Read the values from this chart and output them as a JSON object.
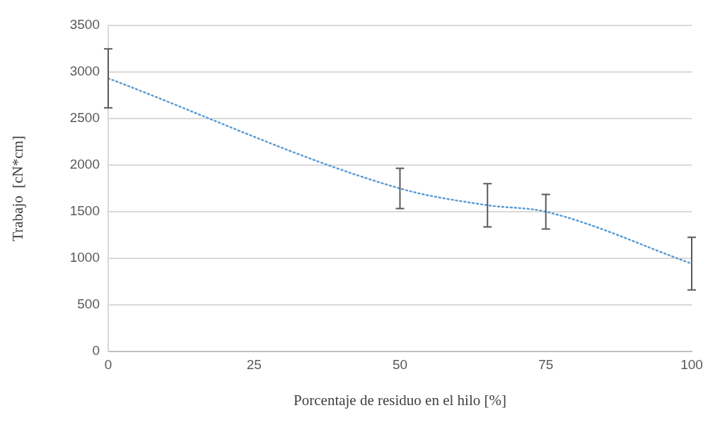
{
  "chart_data": {
    "type": "line",
    "xlabel": "Porcentaje de residuo en el hilo [%]",
    "ylabel": "Trabajo  [cN*cm]",
    "x": [
      0,
      50,
      65,
      75,
      100
    ],
    "series": [
      {
        "color": "#5b9bd5",
        "values": [
          2932,
          1750,
          1570,
          1500,
          943
        ],
        "errors": [
          317,
          215,
          232,
          185,
          282
        ]
      }
    ],
    "xlim": [
      0,
      100
    ],
    "xticks": [
      0,
      25,
      50,
      75,
      100
    ],
    "ylim": [
      0,
      3500
    ],
    "yticks": [
      0,
      500,
      1000,
      1500,
      2000,
      2500,
      3000,
      3500
    ],
    "grid": "y",
    "legend": false,
    "marker": "none",
    "line_style": "dotted"
  }
}
